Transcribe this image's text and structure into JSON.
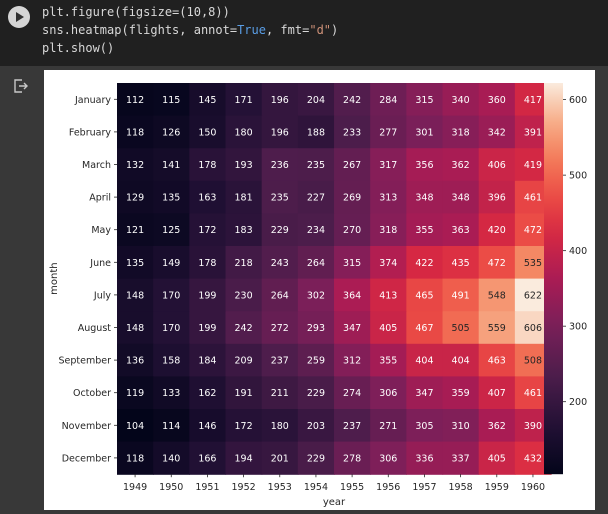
{
  "cell": {
    "code_lines": [
      {
        "parts": [
          {
            "t": "plt.figure(figsize=(10,8))",
            "c": ""
          }
        ]
      },
      {
        "parts": [
          {
            "t": "sns.heatmap(flights, annot=",
            "c": ""
          },
          {
            "t": "True",
            "c": "kw"
          },
          {
            "t": ", fmt=",
            "c": ""
          },
          {
            "t": "\"d\"",
            "c": "str"
          },
          {
            "t": ")",
            "c": ""
          }
        ]
      },
      {
        "parts": [
          {
            "t": "plt.show()",
            "c": ""
          }
        ]
      }
    ]
  },
  "icons": {
    "run": "play-icon",
    "output": "output-redirect-icon"
  },
  "colors": {
    "cell_bg": "#202020",
    "page_bg": "#383838",
    "figure_bg": "#ffffff"
  },
  "chart_data": {
    "type": "heatmap",
    "title": "",
    "xlabel": "year",
    "ylabel": "month",
    "x": [
      "1949",
      "1950",
      "1951",
      "1952",
      "1953",
      "1954",
      "1955",
      "1956",
      "1957",
      "1958",
      "1959",
      "1960"
    ],
    "y": [
      "January",
      "February",
      "March",
      "April",
      "May",
      "June",
      "July",
      "August",
      "September",
      "October",
      "November",
      "December"
    ],
    "values": [
      [
        112,
        115,
        145,
        171,
        196,
        204,
        242,
        284,
        315,
        340,
        360,
        417
      ],
      [
        118,
        126,
        150,
        180,
        196,
        188,
        233,
        277,
        301,
        318,
        342,
        391
      ],
      [
        132,
        141,
        178,
        193,
        236,
        235,
        267,
        317,
        356,
        362,
        406,
        419
      ],
      [
        129,
        135,
        163,
        181,
        235,
        227,
        269,
        313,
        348,
        348,
        396,
        461
      ],
      [
        121,
        125,
        172,
        183,
        229,
        234,
        270,
        318,
        355,
        363,
        420,
        472
      ],
      [
        135,
        149,
        178,
        218,
        243,
        264,
        315,
        374,
        422,
        435,
        472,
        535
      ],
      [
        148,
        170,
        199,
        230,
        264,
        302,
        364,
        413,
        465,
        491,
        548,
        622
      ],
      [
        148,
        170,
        199,
        242,
        272,
        293,
        347,
        405,
        467,
        505,
        559,
        606
      ],
      [
        136,
        158,
        184,
        209,
        237,
        259,
        312,
        355,
        404,
        404,
        463,
        508
      ],
      [
        119,
        133,
        162,
        191,
        211,
        229,
        274,
        306,
        347,
        359,
        407,
        461
      ],
      [
        104,
        114,
        146,
        172,
        180,
        203,
        237,
        271,
        305,
        310,
        362,
        390
      ],
      [
        118,
        140,
        166,
        194,
        201,
        229,
        278,
        306,
        336,
        337,
        405,
        432
      ]
    ],
    "vmin": 104,
    "vmax": 622,
    "colorbar_ticks": [
      200,
      300,
      400,
      500,
      600
    ],
    "colormap": "rocket",
    "annot": true,
    "grid": false,
    "legend": "colorbar-right"
  }
}
